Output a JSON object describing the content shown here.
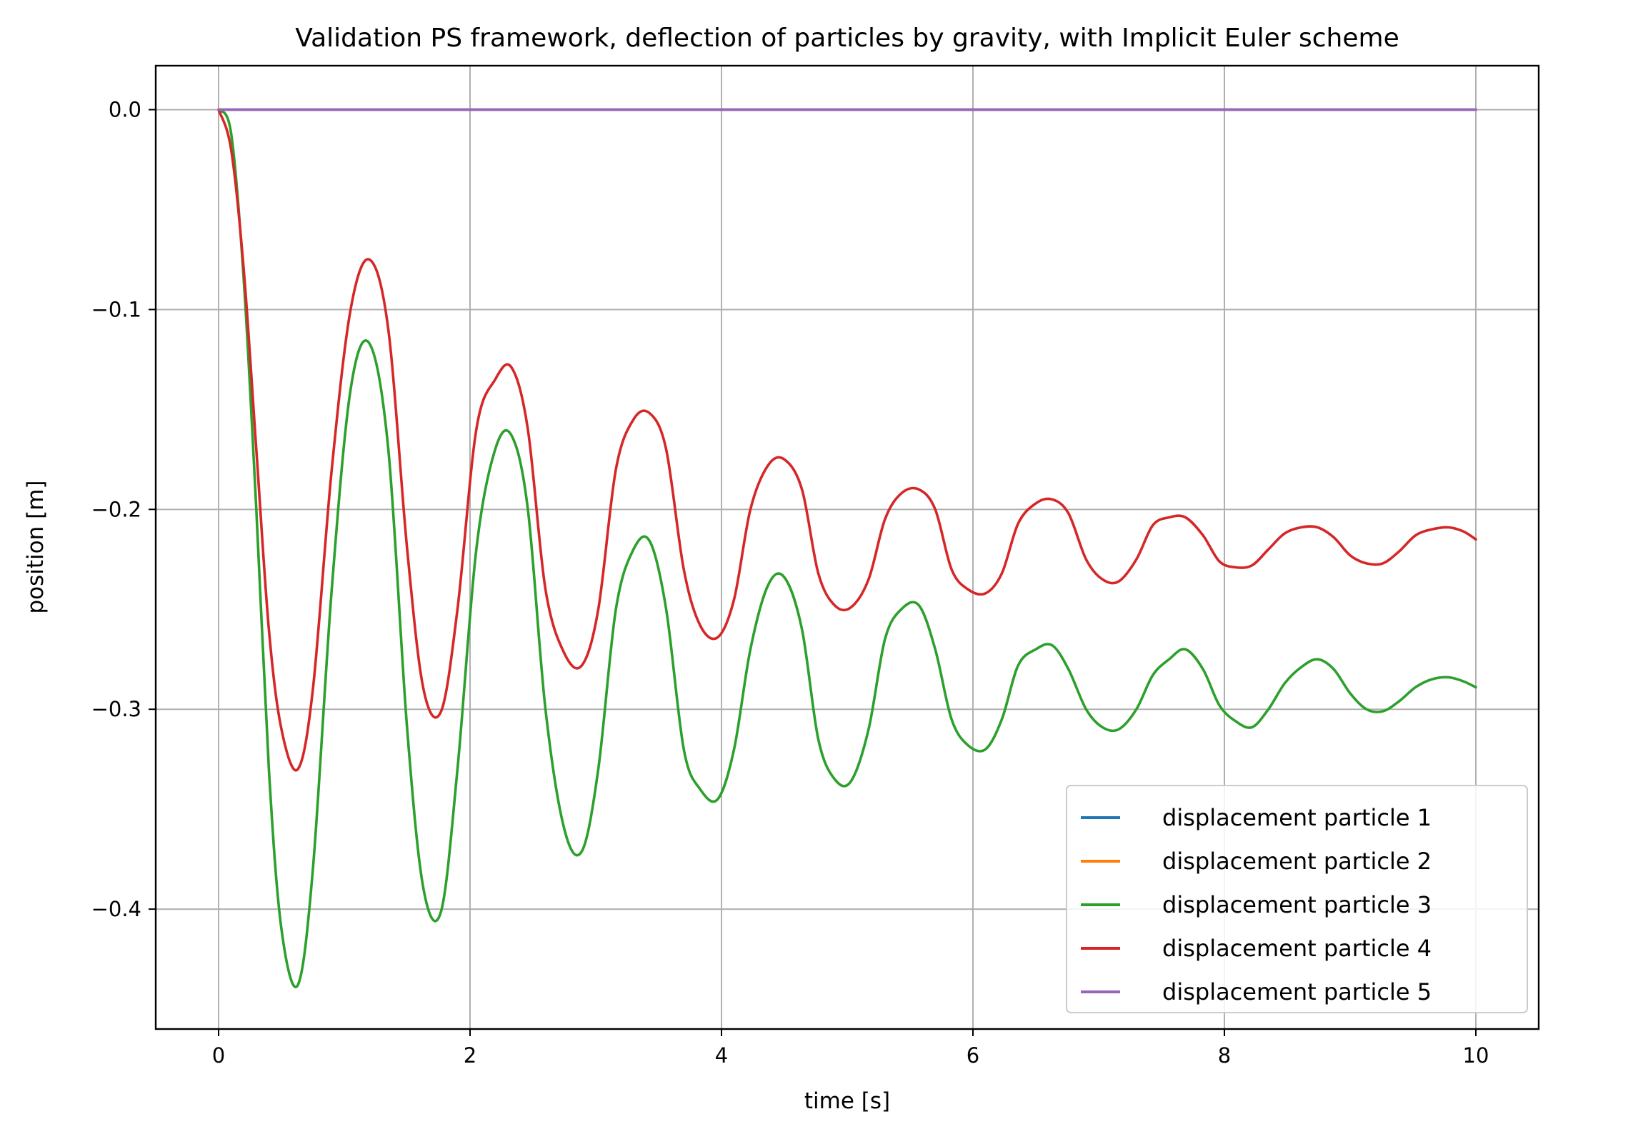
{
  "chart_data": {
    "type": "line",
    "title": "Validation PS framework, deflection of particles by gravity, with Implicit Euler scheme",
    "xlabel": "time [s]",
    "ylabel": "position [m]",
    "xlim": [
      -0.5,
      10.5
    ],
    "ylim": [
      -0.46,
      0.022
    ],
    "xticks": [
      0,
      2,
      4,
      6,
      8,
      10
    ],
    "xtick_labels": [
      "0",
      "2",
      "4",
      "6",
      "8",
      "10"
    ],
    "yticks": [
      0.0,
      -0.1,
      -0.2,
      -0.3,
      -0.4
    ],
    "ytick_labels": [
      "0.0",
      "−0.1",
      "−0.2",
      "−0.3",
      "−0.4"
    ],
    "grid": true,
    "legend_position": "lower-right",
    "series": [
      {
        "name": "displacement particle 1",
        "color": "#1f77b4",
        "x": [
          0,
          10
        ],
        "y": [
          0,
          0
        ]
      },
      {
        "name": "displacement particle 2",
        "color": "#ff7f0e",
        "x": [
          0,
          10
        ],
        "y": [
          0,
          0
        ]
      },
      {
        "name": "displacement particle 3",
        "color": "#2ca02c",
        "x": [
          0,
          0.1,
          0.2,
          0.3,
          0.4,
          0.5,
          0.63,
          0.75,
          0.9,
          1.05,
          1.2,
          1.35,
          1.5,
          1.63,
          1.77,
          1.9,
          2.05,
          2.2,
          2.33,
          2.46,
          2.6,
          2.75,
          2.89,
          3.02,
          3.16,
          3.3,
          3.43,
          3.56,
          3.7,
          3.83,
          3.97,
          4.1,
          4.23,
          4.37,
          4.5,
          4.64,
          4.77,
          4.9,
          5.03,
          5.17,
          5.3,
          5.43,
          5.57,
          5.7,
          5.83,
          5.96,
          6.1,
          6.23,
          6.36,
          6.5,
          6.63,
          6.76,
          6.9,
          7.03,
          7.16,
          7.3,
          7.43,
          7.56,
          7.69,
          7.83,
          7.96,
          8.09,
          8.22,
          8.35,
          8.48,
          8.61,
          8.74,
          8.87,
          9.0,
          9.13,
          9.26,
          9.39,
          9.52,
          9.65,
          9.78,
          9.9,
          10.0
        ],
        "y": [
          0,
          -0.012,
          -0.085,
          -0.2,
          -0.33,
          -0.41,
          -0.438,
          -0.38,
          -0.24,
          -0.14,
          -0.117,
          -0.17,
          -0.31,
          -0.39,
          -0.401,
          -0.33,
          -0.22,
          -0.17,
          -0.163,
          -0.2,
          -0.3,
          -0.36,
          -0.371,
          -0.33,
          -0.25,
          -0.22,
          -0.216,
          -0.25,
          -0.32,
          -0.34,
          -0.345,
          -0.32,
          -0.27,
          -0.238,
          -0.234,
          -0.26,
          -0.315,
          -0.335,
          -0.336,
          -0.31,
          -0.265,
          -0.25,
          -0.248,
          -0.27,
          -0.305,
          -0.318,
          -0.32,
          -0.305,
          -0.278,
          -0.27,
          -0.268,
          -0.28,
          -0.3,
          -0.309,
          -0.31,
          -0.3,
          -0.283,
          -0.275,
          -0.27,
          -0.28,
          -0.298,
          -0.306,
          -0.309,
          -0.3,
          -0.287,
          -0.279,
          -0.275,
          -0.28,
          -0.292,
          -0.3,
          -0.301,
          -0.296,
          -0.289,
          -0.285,
          -0.284,
          -0.286,
          -0.289
        ]
      },
      {
        "name": "displacement particle 4",
        "color": "#d62728",
        "x": [
          0,
          0.1,
          0.2,
          0.3,
          0.4,
          0.5,
          0.63,
          0.75,
          0.9,
          1.05,
          1.2,
          1.35,
          1.5,
          1.63,
          1.77,
          1.9,
          2.05,
          2.2,
          2.33,
          2.46,
          2.6,
          2.75,
          2.89,
          3.02,
          3.16,
          3.3,
          3.43,
          3.56,
          3.7,
          3.83,
          3.97,
          4.1,
          4.23,
          4.37,
          4.5,
          4.64,
          4.77,
          4.9,
          5.03,
          5.17,
          5.3,
          5.43,
          5.57,
          5.7,
          5.83,
          5.96,
          6.1,
          6.23,
          6.36,
          6.5,
          6.63,
          6.76,
          6.9,
          7.03,
          7.16,
          7.3,
          7.43,
          7.56,
          7.69,
          7.83,
          7.96,
          8.09,
          8.22,
          8.35,
          8.48,
          8.61,
          8.74,
          8.87,
          9.0,
          9.13,
          9.26,
          9.39,
          9.52,
          9.65,
          9.78,
          9.9,
          10.0
        ],
        "y": [
          0,
          -0.02,
          -0.08,
          -0.17,
          -0.26,
          -0.31,
          -0.33,
          -0.29,
          -0.18,
          -0.1,
          -0.075,
          -0.11,
          -0.22,
          -0.29,
          -0.301,
          -0.25,
          -0.16,
          -0.135,
          -0.129,
          -0.16,
          -0.24,
          -0.272,
          -0.278,
          -0.25,
          -0.18,
          -0.155,
          -0.152,
          -0.17,
          -0.23,
          -0.258,
          -0.264,
          -0.245,
          -0.2,
          -0.178,
          -0.175,
          -0.19,
          -0.232,
          -0.248,
          -0.249,
          -0.235,
          -0.205,
          -0.192,
          -0.19,
          -0.2,
          -0.23,
          -0.24,
          -0.242,
          -0.232,
          -0.207,
          -0.197,
          -0.195,
          -0.202,
          -0.225,
          -0.235,
          -0.236,
          -0.225,
          -0.208,
          -0.204,
          -0.204,
          -0.213,
          -0.226,
          -0.229,
          -0.228,
          -0.22,
          -0.212,
          -0.209,
          -0.209,
          -0.214,
          -0.223,
          -0.227,
          -0.227,
          -0.221,
          -0.213,
          -0.21,
          -0.209,
          -0.211,
          -0.215
        ]
      },
      {
        "name": "displacement particle 5",
        "color": "#9467bd",
        "x": [
          0,
          10
        ],
        "y": [
          0,
          0
        ]
      }
    ]
  }
}
